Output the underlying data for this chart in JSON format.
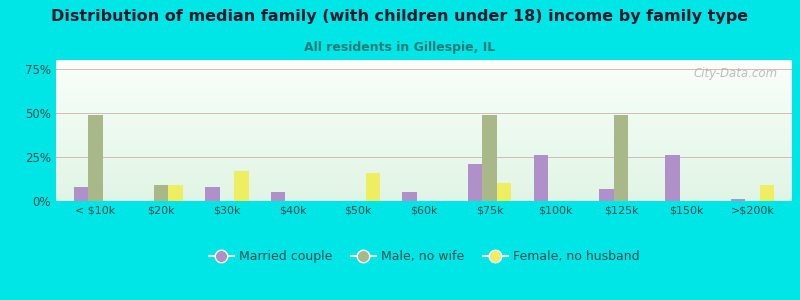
{
  "title": "Distribution of median family (with children under 18) income by family type",
  "subtitle": "All residents in Gillespie, IL",
  "categories": [
    "< $10k",
    "$20k",
    "$30k",
    "$40k",
    "$50k",
    "$60k",
    "$75k",
    "$100k",
    "$125k",
    "$150k",
    ">$200k"
  ],
  "married_couple": [
    8,
    0,
    8,
    5,
    0,
    5,
    21,
    26,
    7,
    26,
    1
  ],
  "male_no_wife": [
    49,
    9,
    0,
    0,
    0,
    0,
    49,
    0,
    49,
    0,
    0
  ],
  "female_no_husband": [
    0,
    9,
    17,
    0,
    16,
    0,
    10,
    0,
    0,
    0,
    9
  ],
  "married_color": "#b090c8",
  "male_color": "#a8b888",
  "female_color": "#eeee60",
  "bg_color": "#00e5e5",
  "plot_bg_color": "#e8f5ee",
  "title_color": "#1a1a2e",
  "subtitle_color": "#2a7a7a",
  "tick_color": "#2a5050",
  "grid_color": "#d8b8b8",
  "watermark": "City-Data.com",
  "ylim": [
    0,
    80
  ],
  "yticks": [
    0,
    25,
    50,
    75
  ],
  "ytick_labels": [
    "0%",
    "25%",
    "50%",
    "75%"
  ],
  "bar_width": 0.22
}
